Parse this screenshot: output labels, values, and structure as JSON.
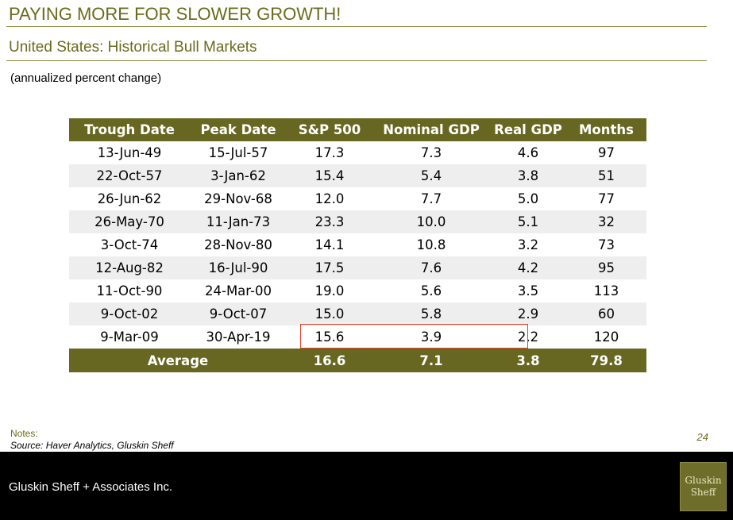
{
  "slide": {
    "title": "PAYING MORE FOR SLOWER GROWTH!",
    "subtitle": "United States: Historical Bull Markets",
    "units_note": "(annualized percent change)",
    "notes_label": "Notes:",
    "source": "Source: Haver Analytics, Gluskin Sheff",
    "page_number": "24"
  },
  "table": {
    "headers": [
      "Trough Date",
      "Peak Date",
      "S&P 500",
      "Nominal GDP",
      "Real GDP",
      "Months"
    ],
    "rows": [
      [
        "13-Jun-49",
        "15-Jul-57",
        "17.3",
        "7.3",
        "4.6",
        "97"
      ],
      [
        "22-Oct-57",
        "3-Jan-62",
        "15.4",
        "5.4",
        "3.8",
        "51"
      ],
      [
        "26-Jun-62",
        "29-Nov-68",
        "12.0",
        "7.7",
        "5.0",
        "77"
      ],
      [
        "26-May-70",
        "11-Jan-73",
        "23.3",
        "10.0",
        "5.1",
        "32"
      ],
      [
        "3-Oct-74",
        "28-Nov-80",
        "14.1",
        "10.8",
        "3.2",
        "73"
      ],
      [
        "12-Aug-82",
        "16-Jul-90",
        "17.5",
        "7.6",
        "4.2",
        "95"
      ],
      [
        "11-Oct-90",
        "24-Mar-00",
        "19.0",
        "5.6",
        "3.5",
        "113"
      ],
      [
        "9-Oct-02",
        "9-Oct-07",
        "15.0",
        "5.8",
        "2.9",
        "60"
      ],
      [
        "9-Mar-09",
        "30-Apr-19",
        "15.6",
        "3.9",
        "2.2",
        "120"
      ]
    ],
    "average": {
      "label": "Average",
      "sp500": "16.6",
      "nominal_gdp": "7.1",
      "real_gdp": "3.8",
      "months": "79.8"
    },
    "colors": {
      "header_bg": "#676721",
      "alt_row_bg": "#eeeeee",
      "highlight_border": "#e2412f"
    }
  },
  "footer": {
    "company": "Gluskin Sheff + Associates Inc.",
    "logo_line1": "Gluskin",
    "logo_line2": "Sheff"
  }
}
